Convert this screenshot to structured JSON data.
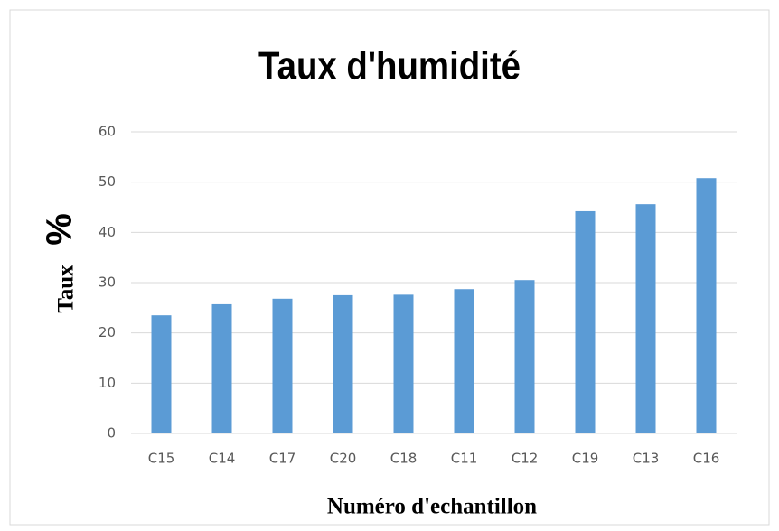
{
  "chart_data": {
    "type": "bar",
    "title": "Taux d'humidité",
    "x_label": "Numéro d'echantillon",
    "y_label": "Taux",
    "y_label_unit": "%",
    "categories": [
      "C15",
      "C14",
      "C17",
      "C20",
      "C18",
      "C11",
      "C12",
      "C19",
      "C13",
      "C16"
    ],
    "values": [
      23.5,
      25.7,
      26.8,
      27.5,
      27.6,
      28.7,
      30.5,
      44.2,
      45.6,
      50.8
    ],
    "color": "#5b9bd5",
    "ylim": [
      0,
      60
    ],
    "yticks": [
      0,
      10,
      20,
      30,
      40,
      50,
      60
    ],
    "grid": true
  }
}
